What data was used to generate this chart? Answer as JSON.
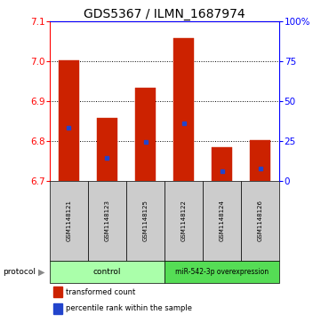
{
  "title": "GDS5367 / ILMN_1687974",
  "samples": [
    "GSM1148121",
    "GSM1148123",
    "GSM1148125",
    "GSM1148122",
    "GSM1148124",
    "GSM1148126"
  ],
  "bar_bottom": 6.7,
  "bar_tops": [
    7.002,
    6.856,
    6.932,
    7.056,
    6.784,
    6.802
  ],
  "percentile_values": [
    6.832,
    6.756,
    6.796,
    6.844,
    6.724,
    6.73
  ],
  "ylim": [
    6.7,
    7.1
  ],
  "yticks": [
    6.7,
    6.8,
    6.9,
    7.0,
    7.1
  ],
  "right_yticks": [
    0,
    25,
    50,
    75,
    100
  ],
  "bar_color": "#cc2200",
  "blue_color": "#2244cc",
  "label_bg_color": "#cccccc",
  "control_color": "#aaffaa",
  "overexp_color": "#55dd55",
  "title_fontsize": 10,
  "tick_fontsize": 7.5,
  "bar_width": 0.55
}
